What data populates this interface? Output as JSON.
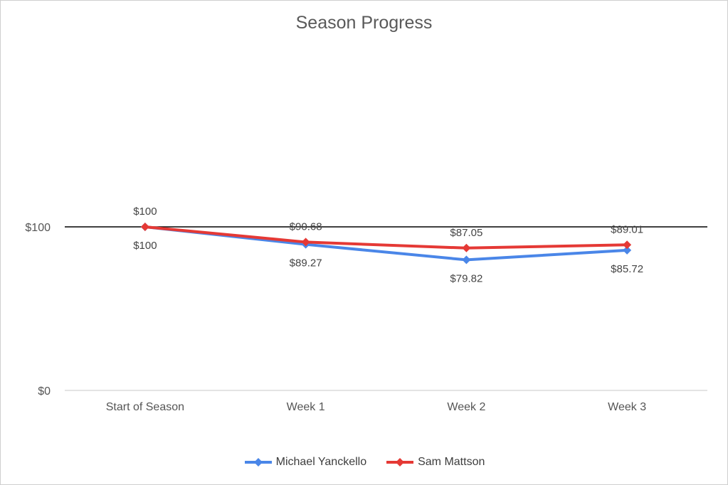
{
  "chart_data": {
    "type": "line",
    "title": "Season Progress",
    "categories": [
      "Start of Season",
      "Week 1",
      "Week 2",
      "Week 3"
    ],
    "ylim": [
      0,
      100
    ],
    "yticks": [
      0,
      100
    ],
    "ytick_labels": [
      "$0",
      "$100"
    ],
    "grid": "horizontal",
    "legend": "bottom",
    "series": [
      {
        "name": "Michael Yanckello",
        "color": "#4a86e8",
        "values": [
          100,
          89.27,
          79.82,
          85.72
        ],
        "labels": [
          "$100",
          "$89.27",
          "$79.82",
          "$85.72"
        ],
        "label_position": "below"
      },
      {
        "name": "Sam Mattson",
        "color": "#e53935",
        "values": [
          100,
          90.68,
          87.05,
          89.01
        ],
        "labels": [
          "$100",
          "$90.68",
          "$87.05",
          "$89.01"
        ],
        "label_position": "above"
      }
    ]
  }
}
